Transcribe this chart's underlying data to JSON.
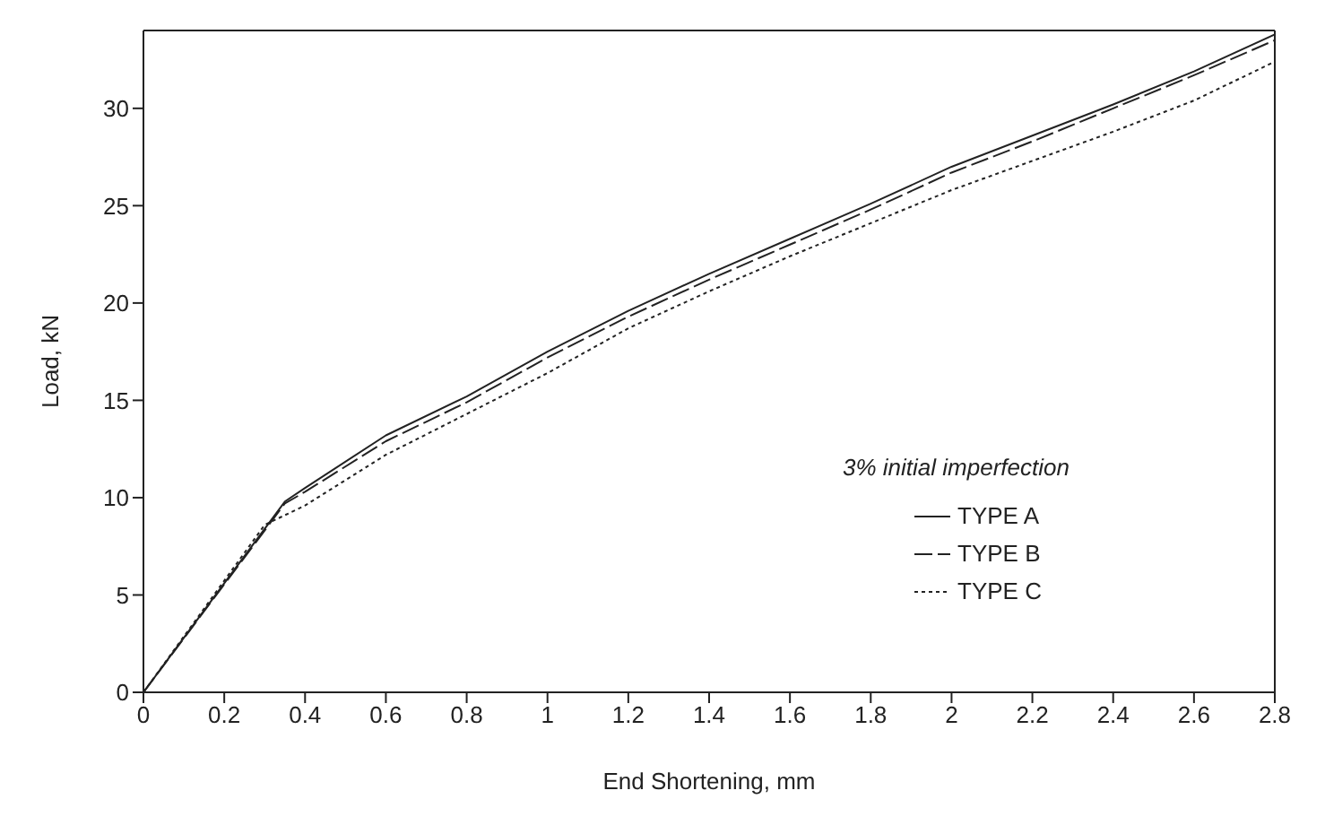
{
  "chart_data": {
    "type": "line",
    "xlabel": "End Shortening, mm",
    "ylabel": "Load, kN",
    "legend_title": "3% initial imperfection",
    "legend": "bottom right",
    "grid": false,
    "marker": "none",
    "xlim": [
      0,
      2.8
    ],
    "xticks": [
      0,
      0.2,
      0.4,
      0.6,
      0.8,
      1,
      1.2,
      1.4,
      1.6,
      1.8,
      2,
      2.2,
      2.4,
      2.6,
      2.8
    ],
    "ylim": [
      0,
      34
    ],
    "yticks": [
      0,
      5,
      10,
      15,
      20,
      25,
      30
    ],
    "series": [
      {
        "name": "TYPE A",
        "color": "#222222",
        "line_style": "solid",
        "x": [
          0,
          0.35,
          0.4,
          0.6,
          0.8,
          1,
          1.2,
          1.4,
          1.6,
          1.8,
          2,
          2.2,
          2.4,
          2.6,
          2.8
        ],
        "values": [
          0,
          9.8,
          10.5,
          13.2,
          15.2,
          17.5,
          19.6,
          21.5,
          23.3,
          25.1,
          27,
          28.6,
          30.2,
          31.9,
          33.8
        ]
      },
      {
        "name": "TYPE B",
        "color": "#222222",
        "line_style": "dashed",
        "x": [
          0,
          0.35,
          0.4,
          0.6,
          0.8,
          1,
          1.2,
          1.4,
          1.6,
          1.8,
          2,
          2.2,
          2.4,
          2.6,
          2.8
        ],
        "values": [
          0,
          9.7,
          10.3,
          12.9,
          14.9,
          17.2,
          19.3,
          21.2,
          23,
          24.8,
          26.7,
          28.3,
          30,
          31.7,
          33.5
        ]
      },
      {
        "name": "TYPE C",
        "color": "#222222",
        "line_style": "dotted",
        "x": [
          0,
          0.3,
          0.4,
          0.6,
          0.8,
          1,
          1.2,
          1.4,
          1.6,
          1.8,
          2,
          2.2,
          2.4,
          2.6,
          2.8
        ],
        "values": [
          0,
          8.6,
          9.6,
          12.2,
          14.3,
          16.4,
          18.7,
          20.6,
          22.4,
          24.1,
          25.8,
          27.3,
          28.8,
          30.4,
          32.4
        ]
      }
    ]
  }
}
